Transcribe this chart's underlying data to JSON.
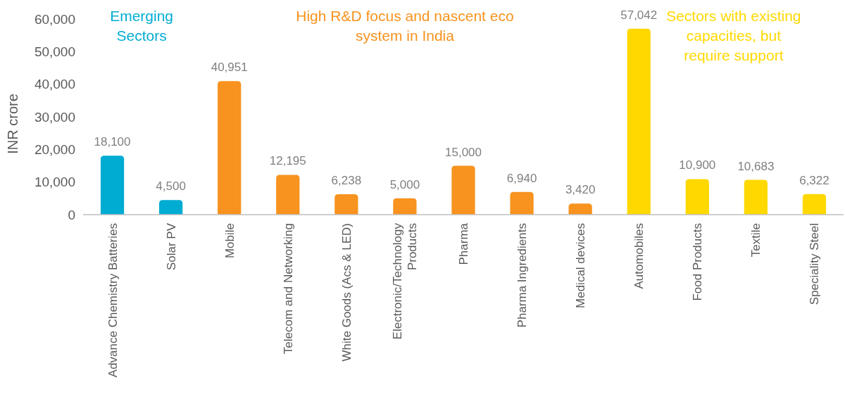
{
  "chart_data": {
    "type": "bar",
    "ylabel": "INR crore",
    "categories": [
      "Advance Chemistry Batteries",
      "Solar PV",
      "Mobile",
      "Telecom and Networking",
      "White Goods (Acs & LED)",
      "Electronic/Technology Products",
      "Pharma",
      "Pharma Ingredients",
      "Medical devices",
      "Automobiles",
      "Food Products",
      "Textile",
      "Speciality Steel"
    ],
    "values": [
      18100,
      4500,
      40951,
      12195,
      6238,
      5000,
      15000,
      6940,
      3420,
      57042,
      10900,
      10683,
      6322
    ],
    "colors": [
      "#00acd2",
      "#00acd2",
      "#f7931e",
      "#f7931e",
      "#f7931e",
      "#f7931e",
      "#f7931e",
      "#f7931e",
      "#f7931e",
      "#ffd800",
      "#ffd800",
      "#ffd800",
      "#ffd800"
    ],
    "ylim": [
      0,
      60000
    ],
    "yticks": [
      {
        "value": 0,
        "label": "0"
      },
      {
        "value": 10000,
        "label": "10,000"
      },
      {
        "value": 20000,
        "label": "20,000"
      },
      {
        "value": 30000,
        "label": "30,000"
      },
      {
        "value": 40000,
        "label": "40,000"
      },
      {
        "value": 50000,
        "label": "50,000"
      },
      {
        "value": 60000,
        "label": "60,000"
      }
    ],
    "value_labels": [
      "18,100",
      "4,500",
      "40,951",
      "12,195",
      "6,238",
      "5,000",
      "15,000",
      "6,940",
      "3,420",
      "57,042",
      "10,900",
      "10,683",
      "6,322"
    ],
    "annotations": [
      "Emerging Sectors",
      "High R&D focus and nascent eco system in India",
      "Sectors with existing capacities, but require support"
    ],
    "grid": false
  }
}
